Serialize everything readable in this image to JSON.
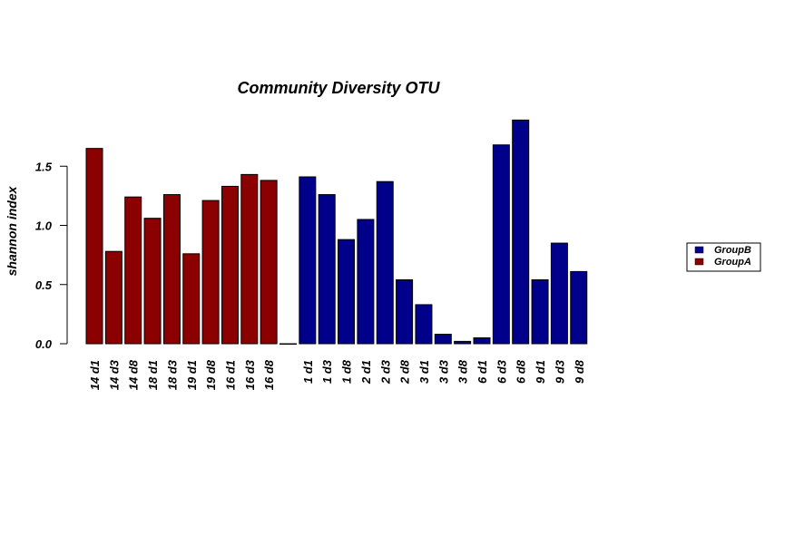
{
  "chart_data": {
    "type": "bar",
    "title": "Community Diversity OTU",
    "ylabel": "shannon index",
    "xlabel": "",
    "ylim": [
      0,
      1.95
    ],
    "yticks": [
      "0.0",
      "0.5",
      "1.0",
      "1.5"
    ],
    "categories": [
      "14 d1",
      "14 d3",
      "14 d8",
      "18 d1",
      "18 d3",
      "19 d1",
      "19 d8",
      "16 d1",
      "16 d3",
      "16 d8",
      "",
      "1 d1",
      "1 d3",
      "1 d8",
      "2 d1",
      "2 d3",
      "2 d8",
      "3 d1",
      "3 d3",
      "3 d8",
      "6 d1",
      "6 d3",
      "6 d8",
      "9 d1",
      "9 d3",
      "9 d8"
    ],
    "values": [
      1.65,
      0.78,
      1.24,
      1.06,
      1.26,
      0.76,
      1.21,
      1.33,
      1.43,
      1.38,
      0.0,
      1.41,
      1.26,
      0.88,
      1.05,
      1.37,
      0.54,
      0.33,
      0.08,
      0.02,
      0.05,
      1.68,
      1.89,
      0.54,
      0.85,
      0.61
    ],
    "groups": [
      "GroupA",
      "GroupA",
      "GroupA",
      "GroupA",
      "GroupA",
      "GroupA",
      "GroupA",
      "GroupA",
      "GroupA",
      "GroupA",
      "",
      "GroupB",
      "GroupB",
      "GroupB",
      "GroupB",
      "GroupB",
      "GroupB",
      "GroupB",
      "GroupB",
      "GroupB",
      "GroupB",
      "GroupB",
      "GroupB",
      "GroupB",
      "GroupB",
      "GroupB"
    ],
    "legend": [
      {
        "name": "GroupB",
        "color": "#00008b"
      },
      {
        "name": "GroupA",
        "color": "#8b0000"
      }
    ],
    "legend_position": "right",
    "grid": false
  }
}
